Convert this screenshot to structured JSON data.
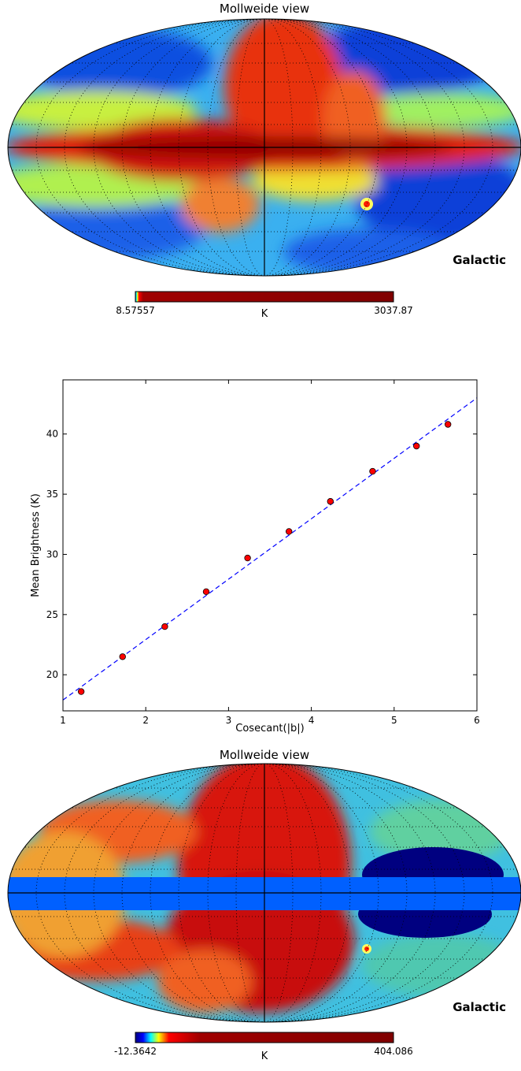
{
  "top_map": {
    "title": "Mollweide view",
    "coord_label": "Galactic",
    "colorbar": {
      "min_label": "8.57557",
      "max_label": "3037.87",
      "unit": "K"
    }
  },
  "bottom_map": {
    "title": "Mollweide view",
    "coord_label": "Galactic",
    "colorbar": {
      "min_label": "-12.3642",
      "max_label": "404.086",
      "unit": "K"
    }
  },
  "chart_data": {
    "type": "scatter",
    "xlabel": "Cosecant(|b|)",
    "ylabel": "Mean Brightness (K)",
    "xlim": [
      1,
      6
    ],
    "ylim": [
      17,
      44.5
    ],
    "xticks": [
      1,
      2,
      3,
      4,
      5,
      6
    ],
    "yticks": [
      20,
      25,
      30,
      35,
      40
    ],
    "grid": false,
    "points": [
      {
        "x": 1.22,
        "y": 18.6
      },
      {
        "x": 1.72,
        "y": 21.5
      },
      {
        "x": 2.23,
        "y": 24.0
      },
      {
        "x": 2.73,
        "y": 26.9
      },
      {
        "x": 3.23,
        "y": 29.7
      },
      {
        "x": 3.73,
        "y": 31.9
      },
      {
        "x": 4.23,
        "y": 34.4
      },
      {
        "x": 4.74,
        "y": 36.9
      },
      {
        "x": 5.27,
        "y": 39.0
      },
      {
        "x": 5.65,
        "y": 40.8
      }
    ],
    "fit_line": {
      "x": [
        1,
        6
      ],
      "y": [
        17.9,
        43.0
      ],
      "color": "#0000ff",
      "style": "dashed"
    },
    "marker_color": "#ff0000"
  }
}
